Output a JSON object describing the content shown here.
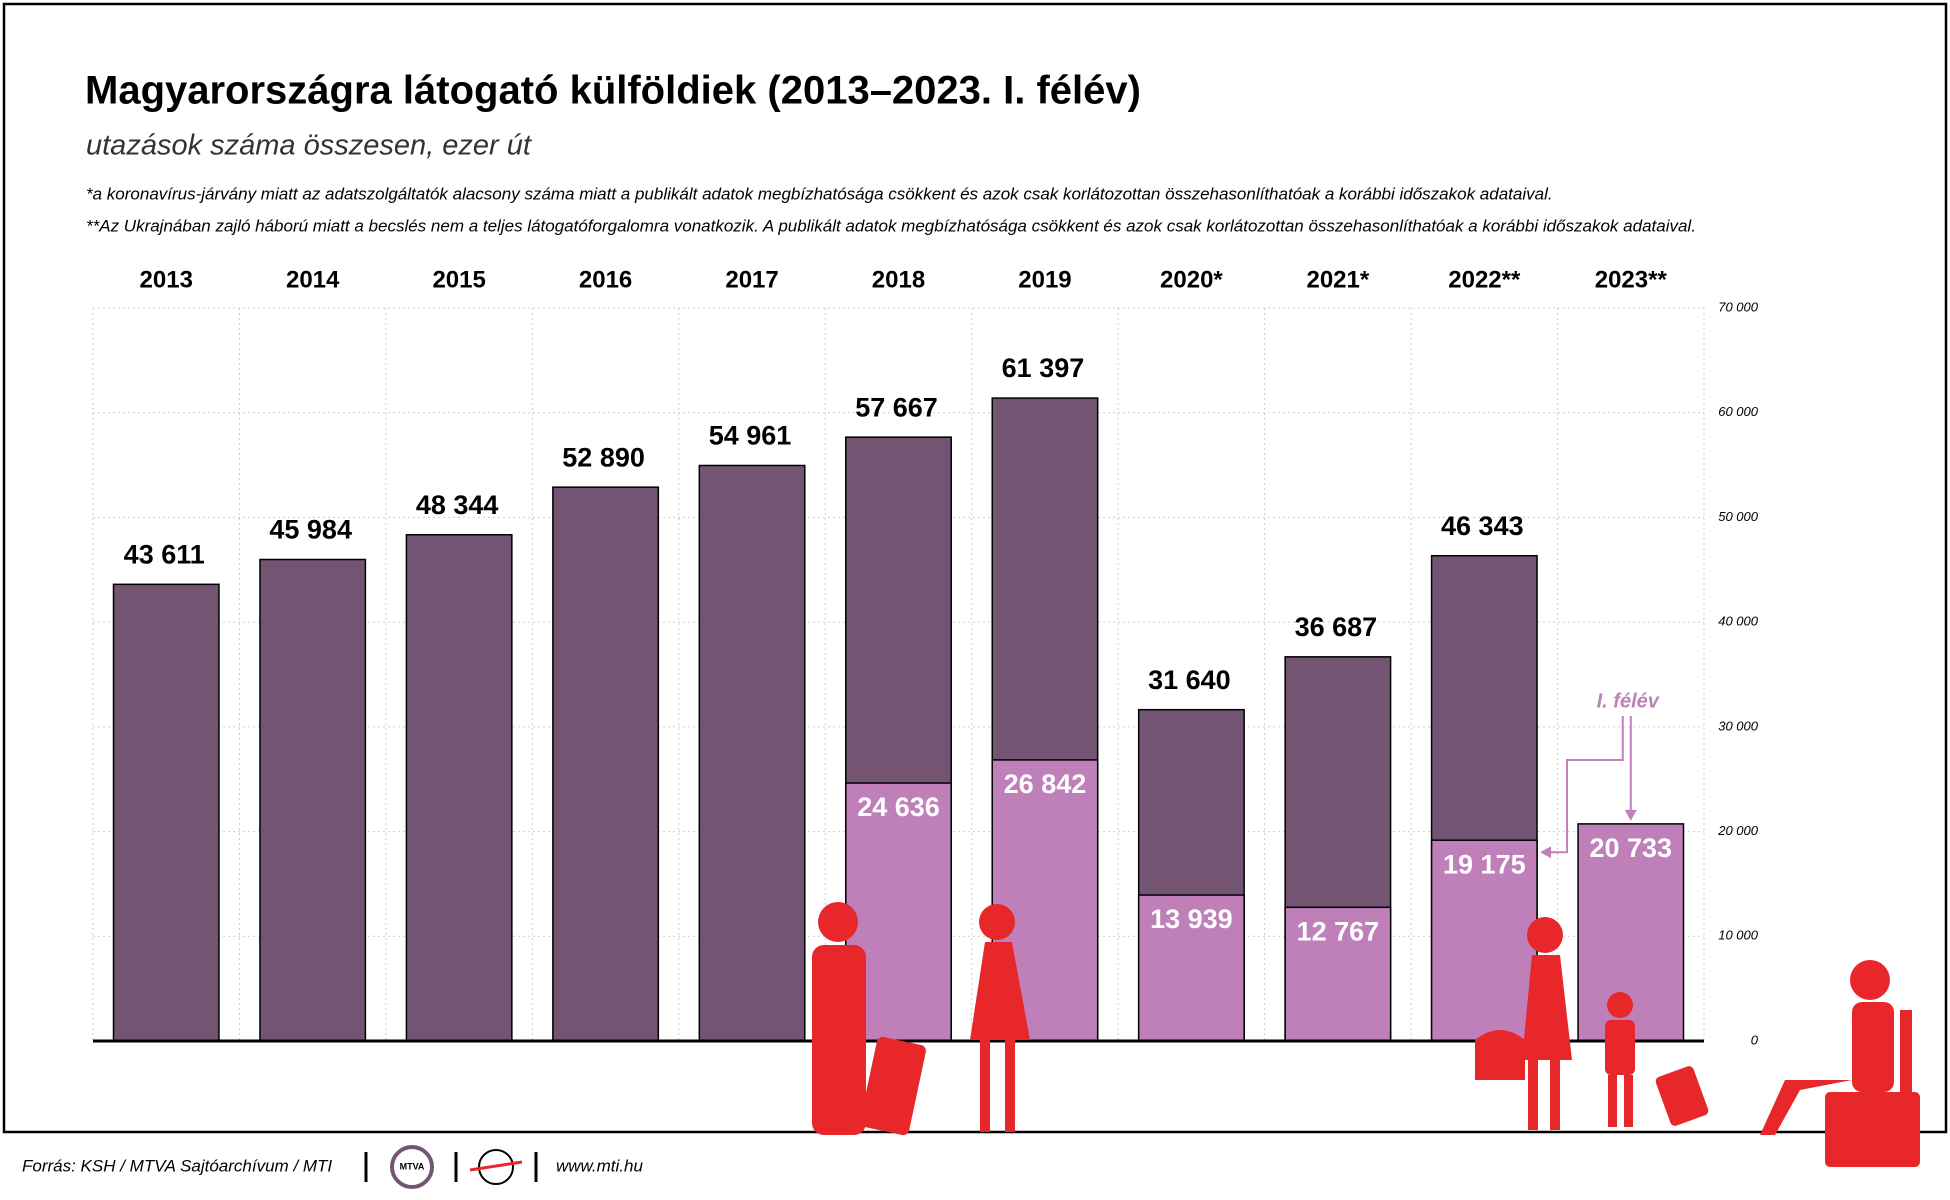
{
  "chart_data": {
    "type": "bar",
    "title": "Magyarországra látogató külföldiek (2013–2023. I. félév)",
    "subtitle": "utazások száma összesen, ezer út",
    "notes": [
      "*a koronavírus-járvány miatt az adatszolgáltatók alacsony száma miatt a publikált adatok megbízhatósága csökkent és azok csak korlátozottan összehasonlíthatóak a korábbi időszakok adataival.",
      "**Az Ukrajnában zajló háború miatt a becslés nem a teljes látogatóforgalomra vonatkozik. A publikált adatok megbízhatósága csökkent és azok csak korlátozottan összehasonlíthatóak a korábbi időszakok adataival."
    ],
    "categories": [
      "2013",
      "2014",
      "2015",
      "2016",
      "2017",
      "2018",
      "2019",
      "2020*",
      "2021*",
      "2022**",
      "2023**"
    ],
    "series": [
      {
        "color": "#735573",
        "values": [
          43611,
          45984,
          48344,
          52890,
          54961,
          57667,
          61397,
          31640,
          36687,
          46343,
          null
        ],
        "value_labels": [
          "43 611",
          "45 984",
          "48 344",
          "52 890",
          "54 961",
          "57 667",
          "61 397",
          "31 640",
          "36 687",
          "46 343",
          null
        ]
      },
      {
        "name": "I. félév",
        "color": "#bf80b9",
        "values": [
          null,
          null,
          null,
          null,
          null,
          24636,
          26842,
          13939,
          12767,
          19175,
          20733
        ],
        "value_labels": [
          null,
          null,
          null,
          null,
          null,
          "24 636",
          "26 842",
          "13 939",
          "12 767",
          "19 175",
          "20 733"
        ]
      }
    ],
    "ylim": [
      0,
      70000
    ],
    "yticks": [
      0,
      {
        "value": 10000,
        "label": "10 000"
      },
      {
        "value": 20000,
        "label": "20 000"
      },
      {
        "value": 30000,
        "label": "30 000"
      },
      {
        "value": 40000,
        "label": "40 000"
      },
      {
        "value": 50000,
        "label": "50 000"
      },
      {
        "value": 60000,
        "label": "60 000"
      },
      {
        "value": 70000,
        "label": "70 000"
      }
    ],
    "grid": true,
    "source": "Forrás: KSH / MTVA Sajtóarchívum / MTI",
    "logo_text": "MTVA",
    "website": "www.mti.hu"
  }
}
